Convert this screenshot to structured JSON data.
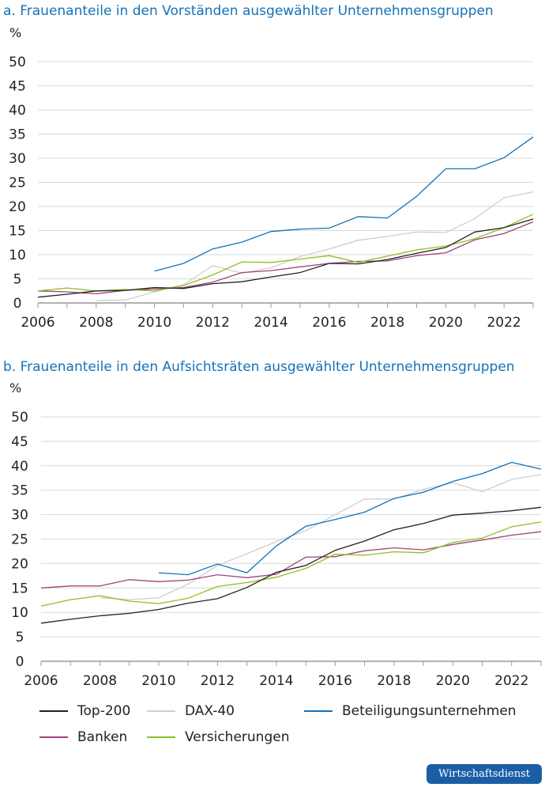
{
  "colors": {
    "Top-200": "#222222",
    "DAX-40": "#cfcfcf",
    "Beteiligungsunternehmen": "#1572b8",
    "Banken": "#a0427f",
    "Versicherungen": "#8cc021",
    "grid": "#d9d9d9",
    "title": "#1572b8"
  },
  "legend": [
    "Top-200",
    "DAX-40",
    "Beteiligungsunternehmen",
    "Banken",
    "Versicherungen"
  ],
  "logo": "Wirtschaftsdienst",
  "chart_data": [
    {
      "type": "line",
      "title": "a. Frauenanteile in den Vorständen ausgewählter Unternehmensgruppen",
      "ylabel": "%",
      "ylim": [
        0,
        50
      ],
      "yticks": [
        0,
        5,
        10,
        15,
        20,
        25,
        30,
        35,
        40,
        45,
        50
      ],
      "xticks": [
        2006,
        2008,
        2010,
        2012,
        2014,
        2016,
        2018,
        2020,
        2022
      ],
      "grid": "horizontal",
      "legend": "bottom",
      "x": [
        2006,
        2007,
        2008,
        2009,
        2010,
        2011,
        2012,
        2013,
        2014,
        2015,
        2016,
        2017,
        2018,
        2019,
        2020,
        2021,
        2022,
        2023
      ],
      "series": [
        {
          "name": "Top-200",
          "values": [
            1.2,
            1.8,
            2.5,
            2.6,
            3.2,
            3.0,
            4.0,
            4.4,
            5.4,
            6.3,
            8.2,
            8.1,
            9.0,
            10.3,
            11.5,
            14.7,
            15.6,
            17.4
          ]
        },
        {
          "name": "DAX-40",
          "values": [
            null,
            null,
            0.5,
            0.6,
            2.3,
            3.8,
            7.7,
            6.2,
            7.3,
            9.6,
            11.2,
            13.0,
            13.8,
            14.7,
            14.6,
            17.5,
            21.8,
            23.0
          ]
        },
        {
          "name": "Beteiligungsunternehmen",
          "values": [
            null,
            null,
            null,
            null,
            6.6,
            8.2,
            11.2,
            12.6,
            14.8,
            15.3,
            15.5,
            17.9,
            17.6,
            22.1,
            27.8,
            27.8,
            30.1,
            34.4
          ]
        },
        {
          "name": "Banken",
          "values": [
            2.5,
            2.3,
            1.9,
            2.6,
            2.9,
            3.2,
            4.3,
            6.3,
            6.7,
            7.5,
            8.2,
            8.6,
            8.7,
            9.8,
            10.4,
            13.1,
            14.4,
            16.8
          ]
        },
        {
          "name": "Versicherungen",
          "values": [
            2.5,
            3.1,
            2.5,
            2.8,
            2.5,
            3.6,
            5.8,
            8.5,
            8.4,
            9.1,
            9.8,
            8.4,
            9.7,
            11.0,
            11.8,
            13.3,
            15.6,
            18.4
          ]
        }
      ]
    },
    {
      "type": "line",
      "title": "b. Frauenanteile in den Aufsichtsräten ausgewählter Unternehmensgruppen",
      "ylabel": "%",
      "ylim": [
        0,
        50
      ],
      "yticks": [
        0,
        5,
        10,
        15,
        20,
        25,
        30,
        35,
        40,
        45,
        50
      ],
      "xticks": [
        2006,
        2008,
        2010,
        2012,
        2014,
        2016,
        2018,
        2020,
        2022
      ],
      "grid": "horizontal",
      "legend": "bottom",
      "x": [
        2006,
        2007,
        2008,
        2009,
        2010,
        2011,
        2012,
        2013,
        2014,
        2015,
        2016,
        2017,
        2018,
        2019,
        2020,
        2021,
        2022,
        2023
      ],
      "series": [
        {
          "name": "Top-200",
          "values": [
            7.8,
            8.6,
            9.3,
            9.8,
            10.6,
            11.9,
            12.8,
            15.1,
            18.2,
            19.6,
            22.7,
            24.6,
            26.9,
            28.2,
            29.9,
            30.3,
            30.8,
            31.5
          ]
        },
        {
          "name": "DAX-40",
          "values": [
            null,
            null,
            13.0,
            12.6,
            13.0,
            15.8,
            19.6,
            22.0,
            24.5,
            26.7,
            30.0,
            33.2,
            33.2,
            35.2,
            36.5,
            34.7,
            37.2,
            38.2
          ]
        },
        {
          "name": "Beteiligungsunternehmen",
          "values": [
            null,
            null,
            null,
            null,
            18.1,
            17.7,
            19.9,
            18.1,
            23.6,
            27.6,
            29.0,
            30.5,
            33.3,
            34.6,
            36.8,
            38.4,
            40.7,
            39.3
          ]
        },
        {
          "name": "Banken",
          "values": [
            15.0,
            15.4,
            15.4,
            16.7,
            16.3,
            16.6,
            17.7,
            17.1,
            17.8,
            21.3,
            21.4,
            22.6,
            23.2,
            22.8,
            23.9,
            24.8,
            25.8,
            26.5
          ]
        },
        {
          "name": "Versicherungen",
          "values": [
            11.3,
            12.6,
            13.4,
            12.3,
            11.8,
            12.9,
            15.3,
            16.1,
            17.2,
            19.0,
            21.9,
            21.7,
            22.4,
            22.2,
            24.3,
            25.2,
            27.5,
            28.5
          ]
        }
      ]
    }
  ]
}
